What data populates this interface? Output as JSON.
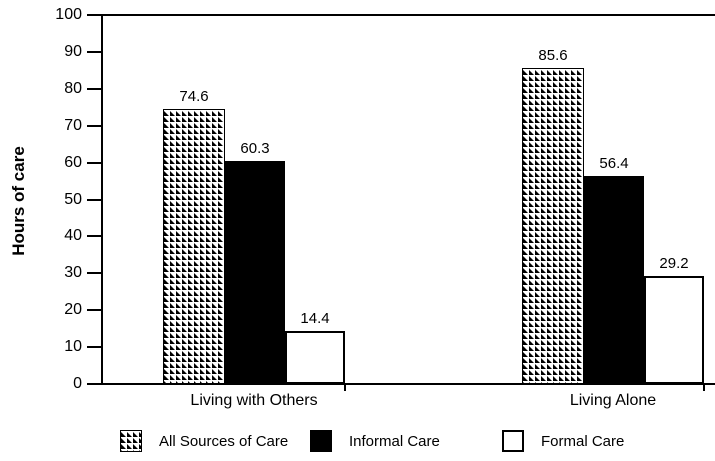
{
  "chart_data": {
    "type": "bar",
    "title": "",
    "xlabel": "",
    "ylabel": "Hours of care",
    "ylim": [
      0,
      100
    ],
    "yticks": [
      0,
      10,
      20,
      30,
      40,
      50,
      60,
      70,
      80,
      90,
      100
    ],
    "categories": [
      "Living with Others",
      "Living Alone"
    ],
    "series": [
      {
        "name": "All Sources of Care",
        "fill": "hatched",
        "values": [
          74.6,
          85.6
        ]
      },
      {
        "name": "Informal Care",
        "fill": "black",
        "values": [
          60.3,
          56.4
        ]
      },
      {
        "name": "Formal Care",
        "fill": "white",
        "values": [
          14.4,
          29.2
        ]
      }
    ],
    "value_labels": [
      "74.6",
      "60.3",
      "14.4",
      "85.6",
      "56.4",
      "29.2"
    ],
    "legend_position": "bottom",
    "grid": false,
    "colors": {
      "foreground": "#000000",
      "background": "#ffffff"
    }
  }
}
